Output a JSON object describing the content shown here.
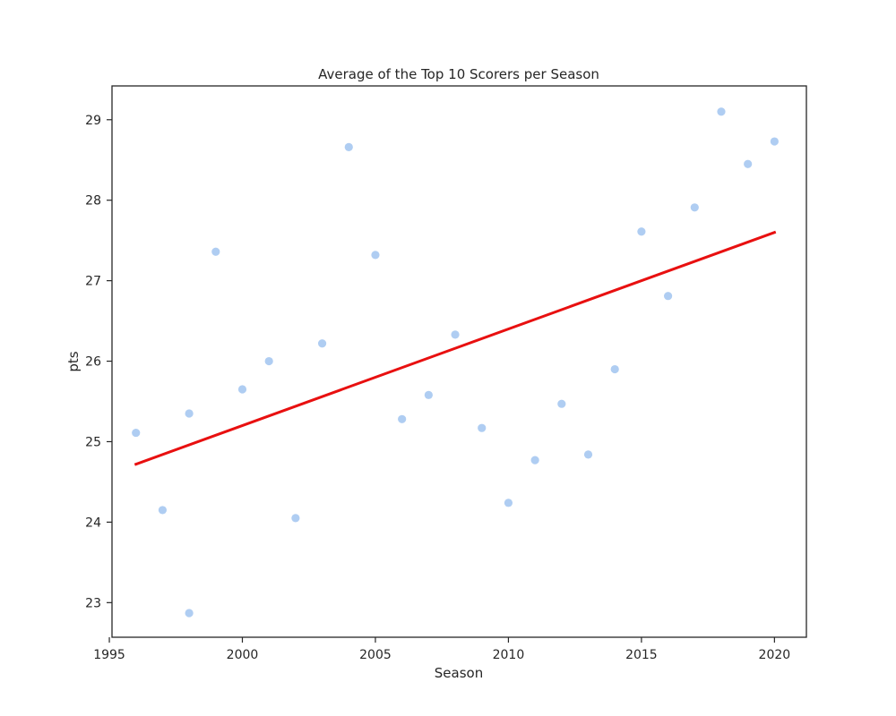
{
  "chart_data": {
    "type": "scatter",
    "title": "Average of the Top 10 Scorers per Season",
    "xlabel": "Season",
    "ylabel": "pts",
    "xlim": [
      1995.1,
      2021.2
    ],
    "ylim": [
      22.57,
      29.42
    ],
    "xticks": [
      1995,
      2000,
      2005,
      2010,
      2015,
      2020
    ],
    "yticks": [
      23,
      24,
      25,
      26,
      27,
      28,
      29
    ],
    "grid": false,
    "legend": "none",
    "point_color": "#a1c4f0",
    "line_color": "#e81010",
    "points": [
      {
        "x": 1996,
        "y": 25.11
      },
      {
        "x": 1997,
        "y": 24.15
      },
      {
        "x": 1998,
        "y": 25.35
      },
      {
        "x": 1998,
        "y": 22.87
      },
      {
        "x": 1999,
        "y": 27.36
      },
      {
        "x": 2000,
        "y": 25.65
      },
      {
        "x": 2001,
        "y": 26.0
      },
      {
        "x": 2002,
        "y": 24.05
      },
      {
        "x": 2003,
        "y": 26.22
      },
      {
        "x": 2004,
        "y": 28.66
      },
      {
        "x": 2005,
        "y": 27.32
      },
      {
        "x": 2006,
        "y": 25.28
      },
      {
        "x": 2007,
        "y": 25.58
      },
      {
        "x": 2008,
        "y": 26.33
      },
      {
        "x": 2009,
        "y": 25.17
      },
      {
        "x": 2010,
        "y": 24.24
      },
      {
        "x": 2011,
        "y": 24.77
      },
      {
        "x": 2012,
        "y": 25.47
      },
      {
        "x": 2013,
        "y": 24.84
      },
      {
        "x": 2014,
        "y": 25.9
      },
      {
        "x": 2015,
        "y": 27.61
      },
      {
        "x": 2016,
        "y": 26.81
      },
      {
        "x": 2017,
        "y": 27.91
      },
      {
        "x": 2018,
        "y": 29.1
      },
      {
        "x": 2019,
        "y": 28.45
      },
      {
        "x": 2020,
        "y": 28.73
      }
    ],
    "trend_line": [
      {
        "x": 1996,
        "y": 24.72
      },
      {
        "x": 2020,
        "y": 27.6
      }
    ]
  }
}
